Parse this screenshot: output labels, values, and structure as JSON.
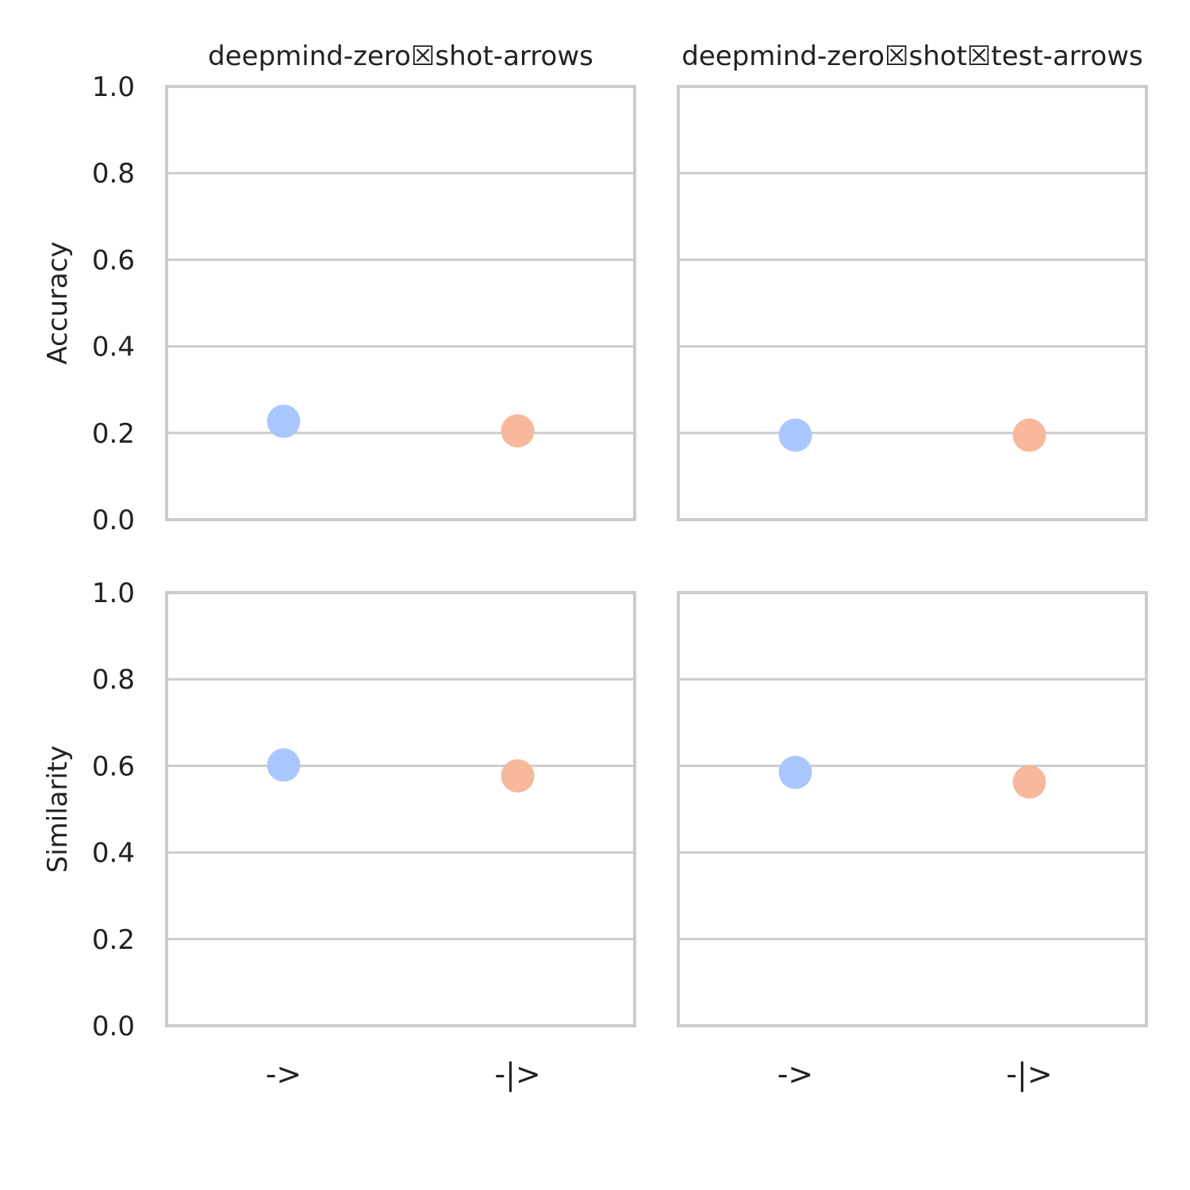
{
  "chart_data": {
    "type": "scatter",
    "grid": true,
    "ylim": [
      0,
      1
    ],
    "yticks": [
      "0.0",
      "0.2",
      "0.4",
      "0.6",
      "0.8",
      "1.0"
    ],
    "categories": [
      "->",
      "-|>"
    ],
    "category_colors": [
      "#aac7fd",
      "#f7b89c"
    ],
    "columns": [
      "deepmind-zero☒shot-arrows",
      "deepmind-zero☒shot☒test-arrows"
    ],
    "rows": [
      "Accuracy",
      "Similarity"
    ],
    "panels": [
      {
        "row": 0,
        "col": 0,
        "values": [
          0.227,
          0.205
        ]
      },
      {
        "row": 0,
        "col": 1,
        "values": [
          0.195,
          0.195
        ]
      },
      {
        "row": 1,
        "col": 0,
        "values": [
          0.602,
          0.577
        ]
      },
      {
        "row": 1,
        "col": 1,
        "values": [
          0.585,
          0.563
        ]
      }
    ]
  }
}
